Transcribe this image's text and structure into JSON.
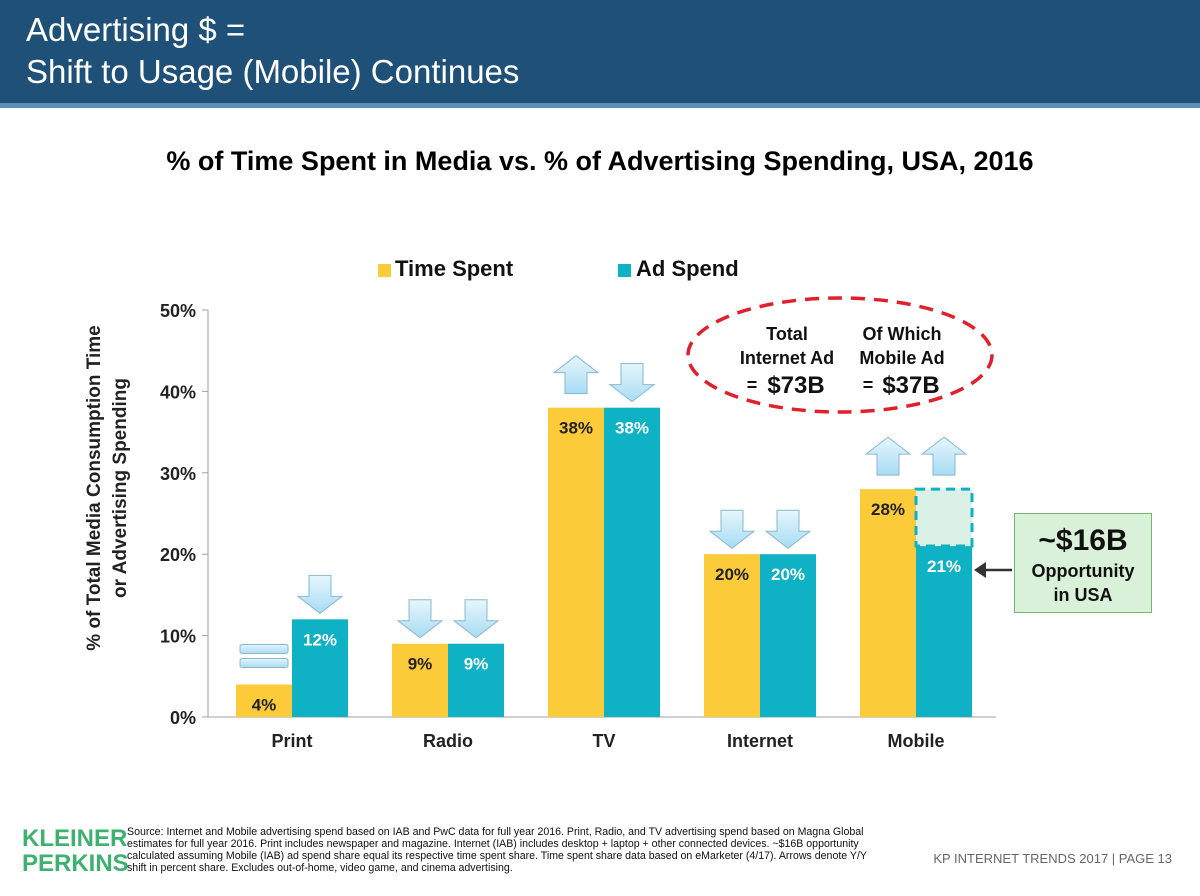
{
  "header": {
    "title_line1": "Advertising $ =",
    "title_line2": "Shift to Usage (Mobile) Continues"
  },
  "colors": {
    "header_bg": "#1f5077",
    "time_spent": "#fccb3a",
    "ad_spend": "#0fb1c5",
    "arrow_fill": "#bfe6f8",
    "callout_bg": "#d9f1d9",
    "ellipse_dash": "#e0202a"
  },
  "chart_data": {
    "type": "bar",
    "title": "% of Time Spent in Media vs. % of Advertising Spending, USA, 2016",
    "ylabel_line1": "% of Total Media Consumption Time",
    "ylabel_line2": "or Advertising Spending",
    "categories": [
      "Print",
      "Radio",
      "TV",
      "Internet",
      "Mobile"
    ],
    "series": [
      {
        "name": "Time Spent",
        "values": [
          4,
          9,
          38,
          20,
          28
        ],
        "labels": [
          "4%",
          "9%",
          "38%",
          "20%",
          "28%"
        ],
        "trend": [
          "flat",
          "down",
          "up",
          "down",
          "up"
        ]
      },
      {
        "name": "Ad Spend",
        "values": [
          12,
          9,
          38,
          20,
          21
        ],
        "labels": [
          "12%",
          "9%",
          "38%",
          "20%",
          "21%"
        ],
        "trend": [
          "down",
          "down",
          "down",
          "down",
          "up"
        ]
      }
    ],
    "mobile_opportunity_target": 28,
    "ylim": [
      0,
      50
    ],
    "yticks": [
      0,
      10,
      20,
      30,
      40,
      50
    ],
    "ytick_labels": [
      "0%",
      "10%",
      "20%",
      "30%",
      "40%",
      "50%"
    ],
    "legend_position": "top",
    "grid": false
  },
  "annotations": {
    "ellipse": {
      "left_line1": "Total",
      "left_line2": "Internet Ad",
      "left_eq": "=",
      "left_value": "$73B",
      "right_line1": "Of Which",
      "right_line2": "Mobile Ad",
      "right_eq": "=",
      "right_value": "$37B"
    },
    "callout": {
      "value": "~$16B",
      "line1": "Opportunity",
      "line2": "in USA"
    }
  },
  "footer": {
    "logo_line1": "KLEINER",
    "logo_line2": "PERKINS",
    "source_text": "Source: Internet and Mobile advertising spend based on IAB and PwC data for full year 2016. Print, Radio, and TV advertising spend based on Magna Global estimates for full year 2016. Print includes newspaper and magazine. Internet (IAB) includes desktop + laptop + other connected devices. ~$16B opportunity calculated assuming Mobile (IAB) ad spend share equal its respective time spent share. Time spent share data based on eMarketer (4/17). Arrows denote Y/Y shift in percent share. Excludes out-of-home, video game, and cinema advertising.",
    "page_label": "KP INTERNET TRENDS 2017   |   PAGE 13"
  }
}
